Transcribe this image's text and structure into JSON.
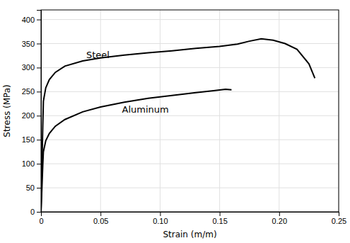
{
  "chart_data": {
    "type": "line",
    "x_label": "Strain (m/m)",
    "y_label": "Stress (MPa)",
    "series": [
      {
        "color": "#000000",
        "x": [
          0,
          0.0005,
          0.001,
          0.0015,
          0.002,
          0.004,
          0.007,
          0.012,
          0.02,
          0.035,
          0.05,
          0.07,
          0.09,
          0.11,
          0.13,
          0.15,
          0.165,
          0.175,
          0.185,
          0.195,
          0.205,
          0.215,
          0.225,
          0.23
        ],
        "values": [
          0,
          60,
          120,
          180,
          230,
          258,
          275,
          290,
          303,
          314,
          320,
          326,
          331,
          335,
          340,
          344,
          349,
          355,
          360,
          357,
          350,
          338,
          308,
          278
        ]
      },
      {
        "color": "#000000",
        "x": [
          0,
          0.0005,
          0.001,
          0.0015,
          0.002,
          0.004,
          0.007,
          0.012,
          0.02,
          0.035,
          0.05,
          0.07,
          0.09,
          0.11,
          0.13,
          0.145,
          0.155,
          0.16
        ],
        "values": [
          0,
          32,
          65,
          98,
          125,
          148,
          163,
          178,
          192,
          208,
          218,
          228,
          236,
          242,
          248,
          252,
          255,
          254
        ]
      }
    ],
    "annotations": [
      {
        "text": "Steel",
        "x": 0.038,
        "y": 320
      },
      {
        "text": "Aluminum",
        "x": 0.068,
        "y": 207
      }
    ],
    "xlim": [
      0,
      0.25
    ],
    "ylim": [
      0,
      420
    ],
    "xticks": [
      0,
      0.05,
      {
        "value": 0.1,
        "label": "0.10"
      },
      0.15,
      {
        "value": 0.2,
        "label": "0.20"
      },
      0.25
    ],
    "yticks": [
      0,
      50,
      100,
      150,
      200,
      250,
      300,
      350,
      400
    ],
    "grid": true
  }
}
